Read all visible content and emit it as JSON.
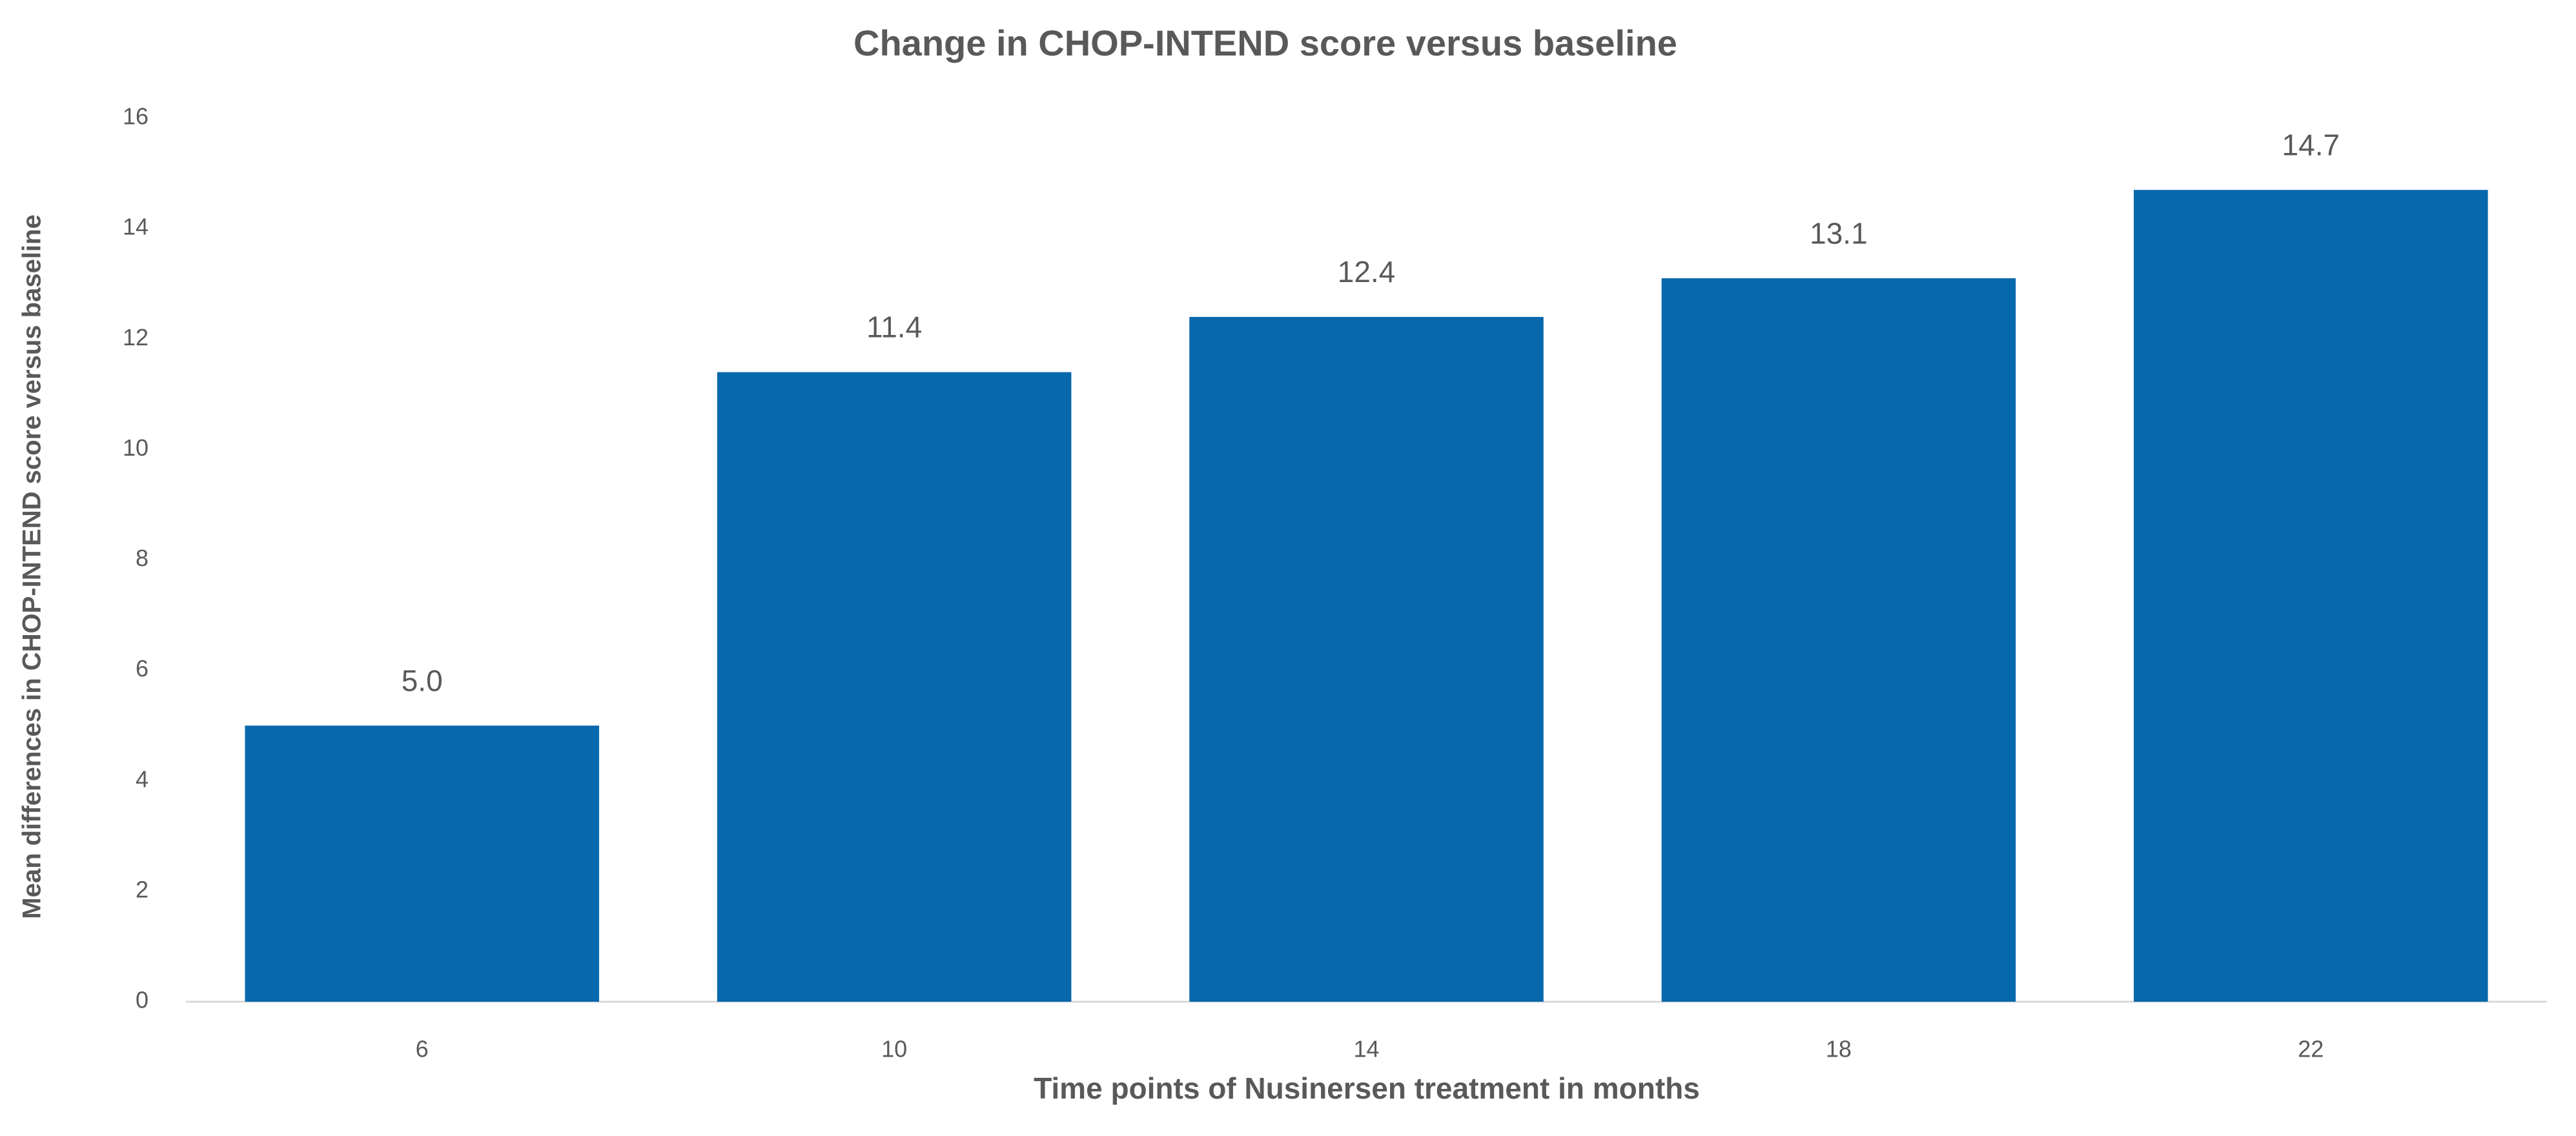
{
  "chart_data": {
    "type": "bar",
    "title": "Change in CHOP-INTEND score versus baseline",
    "x_label": "Time points of Nusinersen treatment in months",
    "y_label": "Mean differences in CHOP-INTEND score versus baseline",
    "categories": [
      "6",
      "10",
      "14",
      "18",
      "22"
    ],
    "values": [
      5.0,
      11.4,
      12.4,
      13.1,
      14.7
    ],
    "value_labels": [
      "5.0",
      "11.4",
      "12.4",
      "13.1",
      "14.7"
    ],
    "color": "#0868ac",
    "ylim": [
      0,
      16
    ],
    "yticks": [
      0,
      2,
      4,
      6,
      8,
      10,
      12,
      14,
      16
    ],
    "grid": false
  }
}
